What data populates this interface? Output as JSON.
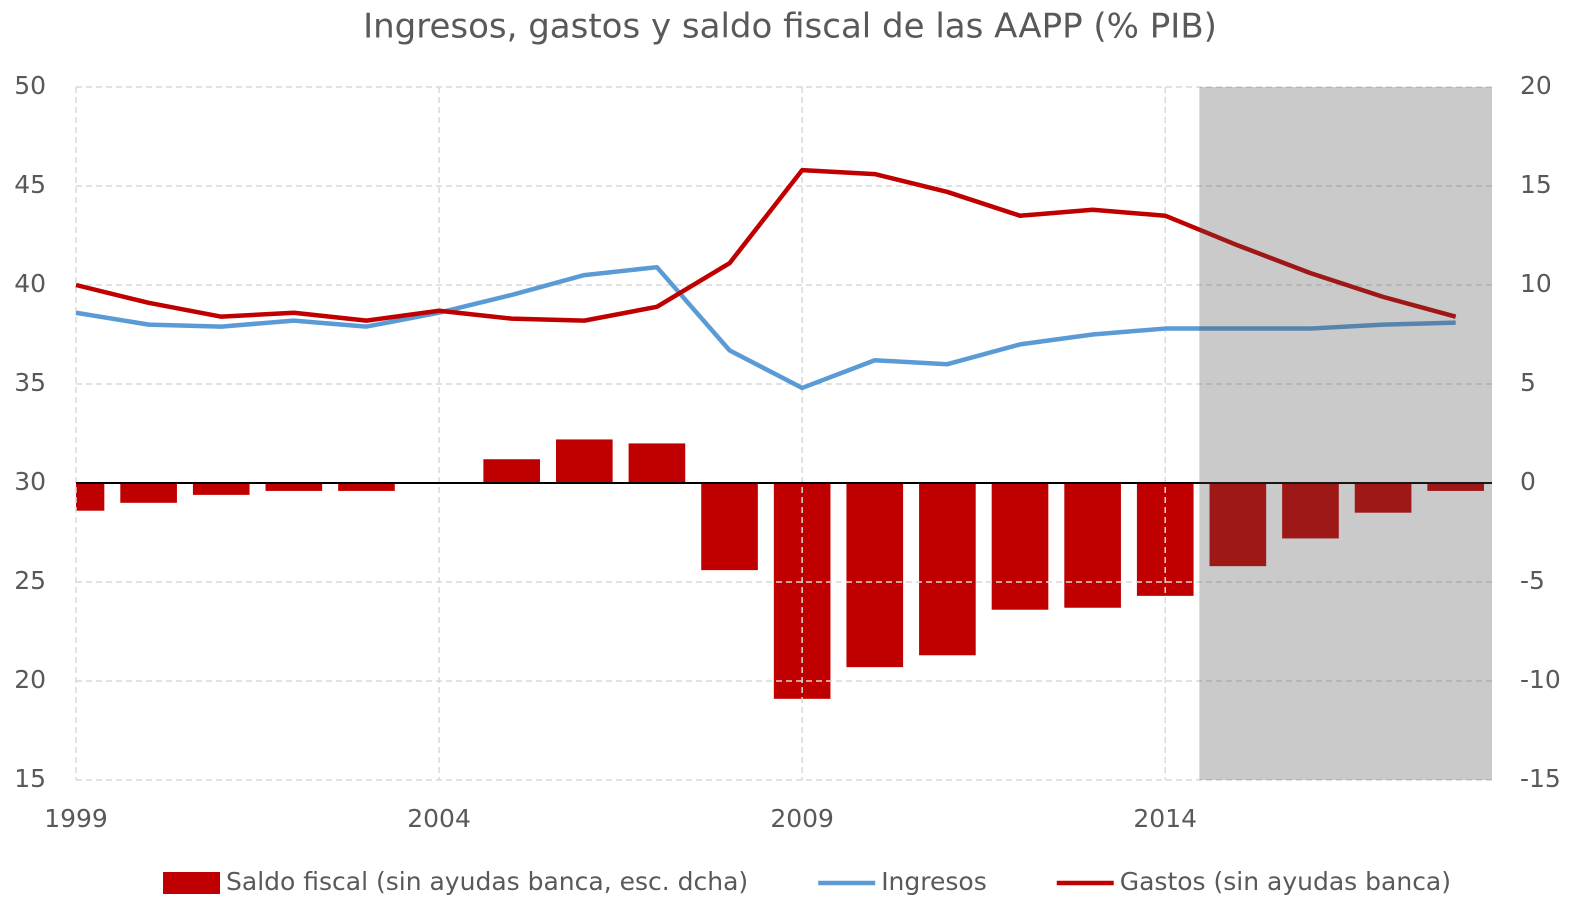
{
  "chart_data": {
    "type": "combo",
    "title": "Ingresos, gastos y saldo fiscal de las AAPP (% PIB)",
    "x": [
      1999,
      2000,
      2001,
      2002,
      2003,
      2004,
      2005,
      2006,
      2007,
      2008,
      2009,
      2010,
      2011,
      2012,
      2013,
      2014,
      2015,
      2016,
      2017,
      2018
    ],
    "series": [
      {
        "name": "Saldo fiscal (sin ayudas banca, esc. dcha)",
        "type": "bar",
        "axis": "y2",
        "color": "#c00000",
        "values": [
          -1.4,
          -1.0,
          -0.6,
          -0.4,
          -0.4,
          0,
          1.2,
          2.2,
          2.0,
          -4.4,
          -10.9,
          -9.3,
          -8.7,
          -6.4,
          -6.3,
          -5.7,
          -4.2,
          -2.8,
          -1.5,
          -0.4
        ]
      },
      {
        "name": "Ingresos",
        "type": "line",
        "color": "#5b9bd5",
        "values": [
          38.6,
          38.0,
          37.9,
          38.2,
          37.9,
          38.6,
          39.5,
          40.5,
          40.9,
          36.7,
          34.8,
          36.2,
          36.0,
          37.0,
          37.5,
          37.8,
          37.8,
          37.8,
          38.0,
          38.1
        ]
      },
      {
        "name": "Gastos (sin ayudas banca)",
        "type": "line",
        "color": "#c00000",
        "values": [
          40.0,
          39.1,
          38.4,
          38.6,
          38.2,
          38.7,
          38.3,
          38.2,
          38.9,
          41.1,
          45.8,
          45.6,
          44.7,
          43.5,
          43.8,
          43.5,
          42.0,
          40.6,
          39.4,
          38.4
        ]
      }
    ],
    "xlim": [
      1999,
      2018.5
    ],
    "xticks": [
      1999,
      2004,
      2009,
      2014
    ],
    "ylim": [
      15,
      50
    ],
    "yticks": [
      15,
      20,
      25,
      30,
      35,
      40,
      45,
      50
    ],
    "y2lim": [
      -15,
      20
    ],
    "y2ticks": [
      -15,
      -10,
      -5,
      0,
      5,
      10,
      15,
      20
    ],
    "shaded_x": [
      2014.47,
      2018.5
    ],
    "grid": true,
    "legend": "bottom"
  }
}
